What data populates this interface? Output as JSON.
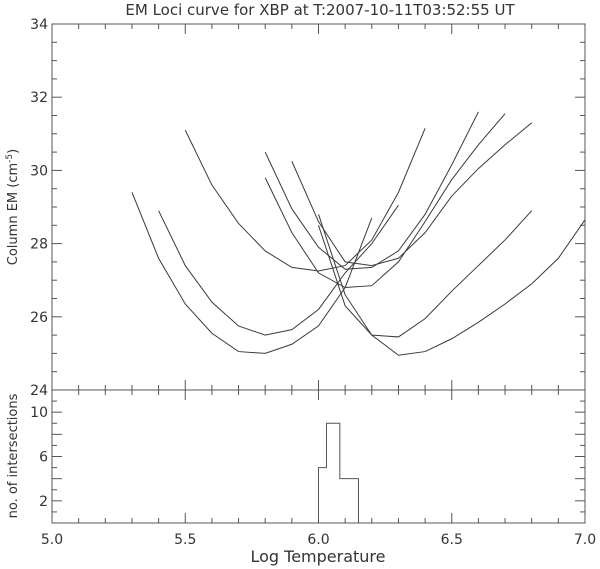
{
  "chart_data": [
    {
      "type": "line",
      "title": "EM Loci curve for XBP at T:2007-10-11T03:52:55 UT",
      "ylabel_main": "Column EM (cm",
      "ylabel_sup": "-5",
      "ylabel_close": ")",
      "xlim": [
        5.0,
        7.0
      ],
      "ylim": [
        24,
        34
      ],
      "yticks": [
        24,
        26,
        28,
        30,
        32,
        34
      ],
      "xticks_minor_step": 0.1,
      "yticks_minor_step": 0.5,
      "grid": false,
      "series": [
        {
          "x": [
            5.3,
            5.4,
            5.5,
            5.6,
            5.7,
            5.8,
            5.9,
            6.0,
            6.1,
            6.2
          ],
          "y": [
            29.4,
            27.6,
            26.35,
            25.55,
            25.05,
            25.0,
            25.25,
            25.75,
            26.8,
            28.7
          ]
        },
        {
          "x": [
            5.4,
            5.5,
            5.6,
            5.7,
            5.8,
            5.9,
            6.0,
            6.1,
            6.2,
            6.3
          ],
          "y": [
            28.9,
            27.4,
            26.4,
            25.75,
            25.5,
            25.65,
            26.2,
            27.2,
            28.0,
            29.05
          ]
        },
        {
          "x": [
            5.5,
            5.6,
            5.7,
            5.8,
            5.9,
            6.0,
            6.1,
            6.2,
            6.3,
            6.4
          ],
          "y": [
            31.1,
            29.6,
            28.55,
            27.8,
            27.35,
            27.25,
            27.4,
            28.1,
            29.4,
            31.15
          ]
        },
        {
          "x": [
            5.8,
            5.9,
            6.0,
            6.1,
            6.2,
            6.3,
            6.4,
            6.5,
            6.6
          ],
          "y": [
            30.5,
            28.95,
            27.9,
            27.3,
            27.35,
            27.8,
            28.8,
            30.15,
            31.6
          ]
        },
        {
          "x": [
            5.8,
            5.9,
            6.0,
            6.1,
            6.2,
            6.3,
            6.4,
            6.5,
            6.6,
            6.7
          ],
          "y": [
            29.8,
            28.3,
            27.2,
            26.8,
            26.85,
            27.5,
            28.6,
            29.75,
            30.7,
            31.55
          ]
        },
        {
          "x": [
            5.9,
            6.0,
            6.1,
            6.2,
            6.3,
            6.4,
            6.5,
            6.6,
            6.7,
            6.8
          ],
          "y": [
            30.25,
            28.6,
            27.5,
            27.4,
            27.6,
            28.3,
            29.3,
            30.05,
            30.7,
            31.3
          ]
        },
        {
          "x": [
            6.0,
            6.1,
            6.2,
            6.3,
            6.4,
            6.5,
            6.6,
            6.7,
            6.8
          ],
          "y": [
            28.8,
            26.6,
            25.5,
            25.45,
            25.95,
            26.7,
            27.4,
            28.1,
            28.9
          ]
        },
        {
          "x": [
            6.0,
            6.1,
            6.2,
            6.3,
            6.4,
            6.5,
            6.6,
            6.7,
            6.8,
            6.9,
            7.0
          ],
          "y": [
            28.5,
            26.3,
            25.5,
            24.95,
            25.05,
            25.4,
            25.85,
            26.35,
            26.9,
            27.6,
            28.65
          ]
        }
      ]
    },
    {
      "type": "bar",
      "ylabel": "no. of intersections",
      "xlabel": "Log Temperature",
      "xlim": [
        5.0,
        7.0
      ],
      "ylim": [
        0,
        12
      ],
      "yticks": [
        2,
        6,
        10
      ],
      "xticks": [
        5.0,
        5.5,
        6.0,
        6.5,
        7.0
      ],
      "xticks_minor_step": 0.1,
      "yticks_minor_step": 1,
      "histogram": [
        {
          "x0": 6.0,
          "x1": 6.03,
          "count": 5
        },
        {
          "x0": 6.03,
          "x1": 6.08,
          "count": 9
        },
        {
          "x0": 6.08,
          "x1": 6.15,
          "count": 4
        },
        {
          "x0": 6.15,
          "x1": 7.0,
          "count": 0
        }
      ]
    }
  ]
}
